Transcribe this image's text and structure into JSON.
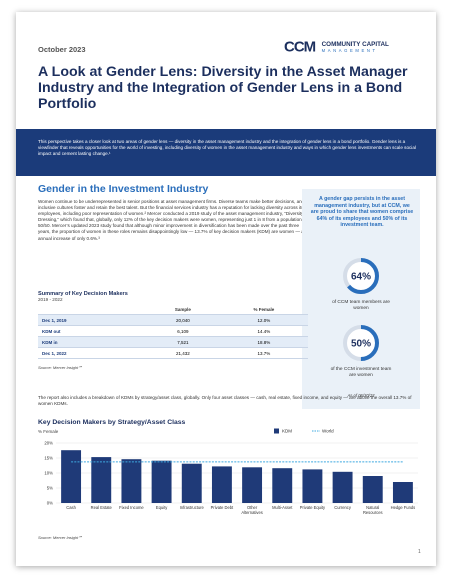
{
  "header": {
    "date": "October 2023",
    "logo_mark": "CCM",
    "logo_name": "COMMUNITY CAPITAL",
    "logo_sub": "MANAGEMENT"
  },
  "title": "A Look at Gender Lens: Diversity in the Asset Manager Industry and the Integration of Gender Lens in a Bond Portfolio",
  "intro": "This perspective takes a closer look at two areas of gender lens — diversity in the asset management industry and the integration of gender lens in a bond portfolio. Gender lens is a viewfinder that reveals opportunities for the world of investing, including diversity of women in the asset management industry and ways in which gender lens investments can scale social impact and cement lasting change.¹",
  "section_heading": "Gender in the Investment Industry",
  "paragraphs": [
    "Women continue to be underrepresented in senior positions at asset management firms. Diverse teams make better decisions, and inclusive cultures foster and retain the best talent. But the financial services industry has a reputation for lacking diversity across its employees, including poor representation of women.² Mercer conducted a 2019 study of the asset management industry, “Diversity Dressing,” which found that, globally, only 12% of the key decision makers were women, representing just 1 in 8 from a population of 50/50. Mercer’s updated 2023 study found that although minor improvement in diversification has been made over the past three years, the proportion of women in these roles remains disappointingly low — 13.7% of key decision makers (KDM) are women — an annual increase of only 0.6%.³",
    "The report also includes a breakdown of KDMs by strategy/asset class, globally. Only four asset classes — cash, real estate, fixed income, and equity — are above the overall 13.7% of women KDMs."
  ],
  "sidebar": {
    "callout": "A gender gap persists in the asset management industry, but at CCM, we are proud to share that women comprise 64% of its employees and 50% of its investment team.",
    "stats": [
      {
        "value": {
          "value": 64,
          "label": "64%"
        },
        "caption": "of CCM team members are women"
      },
      {
        "value": {
          "value": 50,
          "label": "50%"
        },
        "caption": "of the CCM investment team are women"
      }
    ],
    "as_of": "As of 06/30/23"
  },
  "table": {
    "title": "Summary of Key Decision Makers",
    "subtitle": "2019 - 2022",
    "columns": [
      "Sample",
      "% Female"
    ],
    "rows": [
      [
        "Dec 1, 2019",
        "20,040",
        "12.0%"
      ],
      [
        "KDM out",
        "6,109",
        "14.4%"
      ],
      [
        "KDM in",
        "7,521",
        "18.8%"
      ],
      [
        "Dec 1, 2022",
        "21,432",
        "13.7%"
      ]
    ],
    "source": "Source: Mercer Insight℠"
  },
  "chart_data": {
    "type": "bar",
    "title": "Key Decision Makers by Strategy/Asset Class",
    "y_label": "% Female",
    "categories": [
      "Cash",
      "Real Estate",
      "Fixed Income",
      "Equity",
      "Infrastructure",
      "Private Debt",
      "Other Alternatives",
      "Multi-Asset",
      "Private Equity",
      "Currency",
      "Natural Resources",
      "Hedge Funds"
    ],
    "series": [
      {
        "name": "KDM",
        "color": "#1f3a78",
        "values": [
          17.6,
          15.3,
          14.6,
          14.1,
          13.1,
          12.2,
          11.9,
          11.6,
          11.2,
          10.4,
          9.0,
          7.0
        ]
      },
      {
        "name": "World",
        "type": "line",
        "color": "#3fa9e0",
        "values": [
          13.7,
          13.7,
          13.7,
          13.7,
          13.7,
          13.7,
          13.7,
          13.7,
          13.7,
          13.7,
          13.7,
          13.7
        ]
      }
    ],
    "ylim": [
      0,
      20
    ],
    "yticks": [
      {
        "value": 0,
        "label": "0%"
      },
      {
        "value": 5,
        "label": "5%"
      },
      {
        "value": 10,
        "label": "10%"
      },
      {
        "value": 15,
        "label": "15%"
      },
      {
        "value": 20,
        "label": "20%"
      }
    ],
    "grid": true,
    "source": "Source: Mercer Insight℠"
  },
  "page_number": "1"
}
